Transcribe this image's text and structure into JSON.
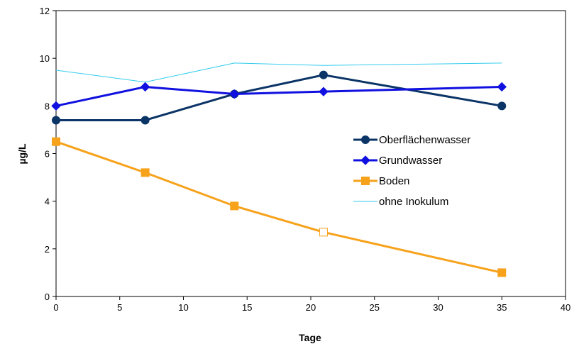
{
  "chart_data": {
    "type": "line",
    "title": "",
    "xlabel": "Tage",
    "ylabel": "µg/L",
    "xlim": [
      0,
      40
    ],
    "ylim": [
      0,
      12
    ],
    "xticks": [
      "0",
      "5",
      "10",
      "15",
      "20",
      "25",
      "30",
      "35",
      "40"
    ],
    "yticks": [
      "0",
      "2",
      "4",
      "6",
      "8",
      "10",
      "12"
    ],
    "grid": false,
    "legend_position": "right",
    "series": [
      {
        "name": "Oberflächenwasser",
        "color": "#0b3467",
        "marker": "circle",
        "x": [
          0,
          7,
          14,
          21,
          35
        ],
        "y": [
          7.4,
          7.4,
          8.5,
          9.3,
          8.0
        ]
      },
      {
        "name": "Grundwasser",
        "color": "#1010e0",
        "marker": "diamond",
        "x": [
          0,
          7,
          14,
          21,
          35
        ],
        "y": [
          8.0,
          8.8,
          8.5,
          8.6,
          8.8
        ]
      },
      {
        "name": "Boden",
        "color": "#f7a21b",
        "marker": "square",
        "hollow_point_index": 3,
        "x": [
          0,
          7,
          14,
          21,
          35
        ],
        "y": [
          6.5,
          5.2,
          3.8,
          2.7,
          1.0
        ]
      },
      {
        "name": "ohne Inokulum",
        "color": "#33ccee",
        "marker": "none",
        "x": [
          0,
          7,
          14,
          21,
          35
        ],
        "y": [
          9.5,
          9.0,
          9.8,
          9.7,
          9.8
        ]
      }
    ]
  }
}
